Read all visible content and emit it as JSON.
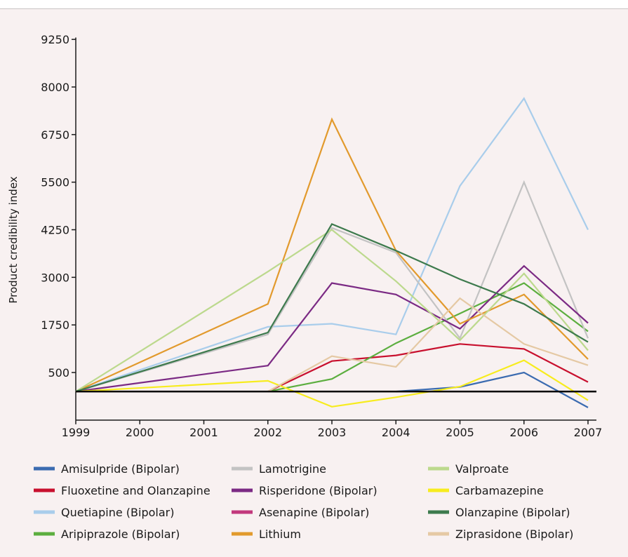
{
  "chart_data": {
    "type": "line",
    "title": "",
    "xlabel": "",
    "ylabel": "Product credibility index",
    "x": [
      1999,
      2000,
      2001,
      2002,
      2003,
      2004,
      2005,
      2006,
      2007
    ],
    "x_tick_labels": [
      "1999",
      "2000",
      "2001",
      "2002",
      "2003",
      "2004",
      "2005",
      "2006",
      "2007"
    ],
    "y_ticks": [
      500,
      1750,
      3000,
      4250,
      5500,
      6750,
      8000,
      9250
    ],
    "y_tick_labels": [
      "500",
      "1750",
      "3000",
      "4250",
      "5500",
      "6750",
      "8000",
      "9250"
    ],
    "ylim": [
      -750,
      9300
    ],
    "baseline": 0,
    "grid": false,
    "legend_position": "bottom",
    "series": [
      {
        "name": "Amisulpride (Bipolar)",
        "color": "#3b6bb0",
        "points": [
          [
            2004,
            0
          ],
          [
            2005,
            120
          ],
          [
            2006,
            500
          ],
          [
            2007,
            -420
          ]
        ]
      },
      {
        "name": "Fluoxetine and Olanzapine",
        "color": "#c8102e",
        "points": [
          [
            2002,
            0
          ],
          [
            2003,
            800
          ],
          [
            2004,
            950
          ],
          [
            2005,
            1250
          ],
          [
            2006,
            1120
          ],
          [
            2007,
            250
          ]
        ]
      },
      {
        "name": "Quetiapine (Bipolar)",
        "color": "#a9cdeb",
        "points": [
          [
            1999,
            0
          ],
          [
            2002,
            1700
          ],
          [
            2003,
            1780
          ],
          [
            2004,
            1500
          ],
          [
            2005,
            5400
          ],
          [
            2006,
            7700
          ],
          [
            2007,
            4250
          ]
        ]
      },
      {
        "name": "Aripiprazole (Bipolar)",
        "color": "#5cae3f",
        "points": [
          [
            2002,
            0
          ],
          [
            2003,
            330
          ],
          [
            2004,
            1270
          ],
          [
            2005,
            2050
          ],
          [
            2006,
            2850
          ],
          [
            2007,
            1580
          ]
        ]
      },
      {
        "name": "Lamotrigine",
        "color": "#c3c3c3",
        "points": [
          [
            1999,
            0
          ],
          [
            2002,
            1500
          ],
          [
            2003,
            4300
          ],
          [
            2004,
            3650
          ],
          [
            2005,
            1400
          ],
          [
            2006,
            5500
          ],
          [
            2007,
            1400
          ]
        ]
      },
      {
        "name": "Risperidone (Bipolar)",
        "color": "#7b2a84",
        "points": [
          [
            1999,
            0
          ],
          [
            2002,
            680
          ],
          [
            2003,
            2850
          ],
          [
            2004,
            2550
          ],
          [
            2005,
            1650
          ],
          [
            2006,
            3300
          ],
          [
            2007,
            1800
          ]
        ]
      },
      {
        "name": "Asenapine (Bipolar)",
        "color": "#c2397d",
        "points": []
      },
      {
        "name": "Lithium",
        "color": "#e29a2d",
        "points": [
          [
            1999,
            0
          ],
          [
            2002,
            2300
          ],
          [
            2003,
            7150
          ],
          [
            2004,
            3700
          ],
          [
            2005,
            1780
          ],
          [
            2006,
            2550
          ],
          [
            2007,
            850
          ]
        ]
      },
      {
        "name": "Valproate",
        "color": "#bcd98d",
        "points": [
          [
            1999,
            0
          ],
          [
            2002,
            3150
          ],
          [
            2003,
            4250
          ],
          [
            2004,
            2900
          ],
          [
            2005,
            1350
          ],
          [
            2006,
            3100
          ],
          [
            2007,
            1080
          ]
        ]
      },
      {
        "name": "Carbamazepine",
        "color": "#f7ec1e",
        "points": [
          [
            1999,
            0
          ],
          [
            2002,
            280
          ],
          [
            2003,
            -400
          ],
          [
            2004,
            -150
          ],
          [
            2005,
            130
          ],
          [
            2006,
            820
          ],
          [
            2007,
            -230
          ]
        ]
      },
      {
        "name": "Olanzapine (Bipolar)",
        "color": "#3d7a4d",
        "points": [
          [
            1999,
            0
          ],
          [
            2002,
            1550
          ],
          [
            2003,
            4400
          ],
          [
            2004,
            3700
          ],
          [
            2005,
            2950
          ],
          [
            2006,
            2300
          ],
          [
            2007,
            1300
          ]
        ]
      },
      {
        "name": "Ziprasidone (Bipolar)",
        "color": "#e5c9a4",
        "points": [
          [
            2002,
            0
          ],
          [
            2003,
            930
          ],
          [
            2004,
            650
          ],
          [
            2005,
            2450
          ],
          [
            2006,
            1250
          ],
          [
            2007,
            690
          ]
        ]
      }
    ]
  }
}
